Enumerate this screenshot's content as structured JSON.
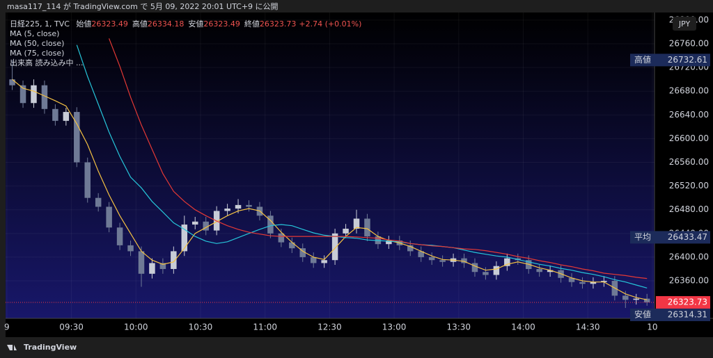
{
  "header": {
    "published": "masa117_114 が TradingView.com で 5月 09, 2022 20:01 UTC+9 に公開"
  },
  "footer": {
    "brand": "TradingView"
  },
  "chart_data": {
    "type": "candlestick",
    "symbol": "日経225, 1, TVC",
    "ohlc_legend": [
      {
        "label": "始値",
        "value": 26323.49
      },
      {
        "label": "高値",
        "value": 26334.18
      },
      {
        "label": "安値",
        "value": 26323.49
      },
      {
        "label": "終値",
        "value": 26323.73
      }
    ],
    "change": "+2.74 (+0.01%)",
    "volume_status": "出来高 読み込み中 ...",
    "currency": "JPY",
    "up_color": "#c8ccd6",
    "down_color": "#6f7a96",
    "x": [
      2.5,
      7.5,
      12.5,
      17.5,
      22.5,
      27.5,
      32.5,
      37.5,
      42.5,
      47.5,
      52.5,
      57.5,
      62.5,
      67.5,
      72.5,
      77.5,
      82.5,
      87.5,
      92.5,
      97.5,
      102.5,
      107.5,
      112.5,
      117.5,
      122.5,
      127.5,
      132.5,
      137.5,
      142.5,
      147.5,
      152.5,
      157.5,
      162.5,
      167.5,
      172.5,
      177.5,
      182.5,
      187.5,
      192.5,
      197.5,
      202.5,
      207.5,
      212.5,
      217.5,
      222.5,
      227.5,
      232.5,
      237.5,
      242.5,
      247.5,
      252.5,
      257.5,
      262.5,
      267.5,
      272.5,
      277.5,
      282.5,
      287.5,
      292.5,
      297.5
    ],
    "open": [
      26700,
      26690,
      26660,
      26690,
      26650,
      26630,
      26645,
      26560,
      26500,
      26485,
      26450,
      26420,
      26410,
      26372,
      26390,
      26380,
      26410,
      26455,
      26460,
      26445,
      26478,
      26482,
      26488,
      26485,
      26470,
      26440,
      26425,
      26415,
      26400,
      26390,
      26395,
      26440,
      26448,
      26465,
      26435,
      26422,
      26428,
      26420,
      26410,
      26400,
      26395,
      26392,
      26398,
      26390,
      26375,
      26370,
      26385,
      26398,
      26395,
      26380,
      26375,
      26378,
      26365,
      26358,
      26355,
      26358,
      26360,
      26335,
      26328,
      26330
    ],
    "high": [
      26733,
      26698,
      26700,
      26698,
      26658,
      26652,
      26653,
      26568,
      26508,
      26493,
      26458,
      26428,
      26418,
      26398,
      26398,
      26418,
      26470,
      26468,
      26468,
      26486,
      26490,
      26498,
      26496,
      26493,
      26478,
      26448,
      26433,
      26423,
      26408,
      26403,
      26448,
      26456,
      26480,
      26473,
      26443,
      26436,
      26436,
      26428,
      26418,
      26408,
      26403,
      26406,
      26406,
      26398,
      26383,
      26393,
      26406,
      26406,
      26403,
      26388,
      26386,
      26386,
      26373,
      26366,
      26366,
      26368,
      26368,
      26343,
      26338,
      26338
    ],
    "low": [
      26682,
      26652,
      26652,
      26642,
      26622,
      26622,
      26552,
      26492,
      26477,
      26442,
      26412,
      26402,
      26350,
      26364,
      26372,
      26372,
      26402,
      26447,
      26437,
      26437,
      26470,
      26474,
      26477,
      26462,
      26432,
      26417,
      26407,
      26392,
      26382,
      26382,
      26387,
      26432,
      26440,
      26427,
      26414,
      26414,
      26412,
      26402,
      26392,
      26387,
      26384,
      26384,
      26382,
      26367,
      26362,
      26362,
      26377,
      26387,
      26372,
      26367,
      26367,
      26357,
      26350,
      26347,
      26347,
      26350,
      26327,
      26314.31,
      26320,
      26318
    ],
    "close": [
      26690,
      26660,
      26690,
      26650,
      26630,
      26645,
      26560,
      26500,
      26485,
      26450,
      26420,
      26410,
      26372,
      26390,
      26380,
      26410,
      26455,
      26460,
      26445,
      26478,
      26482,
      26488,
      26485,
      26470,
      26440,
      26425,
      26415,
      26400,
      26390,
      26395,
      26440,
      26448,
      26465,
      26435,
      26422,
      26428,
      26420,
      26410,
      26400,
      26395,
      26392,
      26398,
      26390,
      26375,
      26370,
      26385,
      26398,
      26395,
      26380,
      26375,
      26378,
      26365,
      26358,
      26355,
      26358,
      26360,
      26335,
      26328,
      26330,
      26323.73
    ],
    "series": [
      {
        "name": "MA (5, close)",
        "color": "#f5c242",
        "values": [
          26700,
          26685,
          26680,
          26672,
          26664,
          26655,
          26625,
          26590,
          26545,
          26505,
          26470,
          26440,
          26410,
          26395,
          26388,
          26392,
          26415,
          26440,
          26450,
          26460,
          26470,
          26478,
          26482,
          26478,
          26462,
          26442,
          26425,
          26410,
          26400,
          26396,
          26415,
          26435,
          26450,
          26448,
          26435,
          26428,
          26424,
          26418,
          26410,
          26402,
          26396,
          26395,
          26393,
          26385,
          26378,
          26380,
          26388,
          26392,
          26388,
          26382,
          26378,
          26372,
          26365,
          26360,
          26358,
          26358,
          26348,
          26338,
          26332,
          26328
        ]
      },
      {
        "name": "MA (50, close)",
        "color": "#26c6da",
        "values": [
          null,
          null,
          null,
          null,
          null,
          null,
          26758,
          26705,
          26658,
          26611,
          26570,
          26535,
          26517,
          26494,
          26476,
          26458,
          26447,
          26435,
          26427,
          26423,
          26426,
          26433,
          26440,
          26447,
          26453,
          26455,
          26453,
          26447,
          26441,
          26437,
          26435,
          26433,
          26432,
          26429,
          26428,
          26427,
          26426,
          26423,
          26421,
          26420,
          26418,
          26416,
          26412,
          26408,
          26405,
          26402,
          26400,
          26396,
          26392,
          26388,
          26385,
          26381,
          26378,
          26374,
          26371,
          26367,
          26362,
          26358,
          26353,
          26348
        ]
      },
      {
        "name": "MA (75, close)",
        "color": "#e53935",
        "values": [
          null,
          null,
          null,
          null,
          null,
          null,
          null,
          null,
          null,
          26769,
          26722,
          26670,
          26623,
          26582,
          26541,
          26511,
          26494,
          26480,
          26470,
          26461,
          26453,
          26447,
          26442,
          26439,
          26436,
          26435,
          26435,
          26435,
          26435,
          26435,
          26435,
          26435,
          26434,
          26433,
          26432,
          26429,
          26427,
          26423,
          26421,
          26419,
          26418,
          26416,
          26414,
          26413,
          26411,
          26408,
          26405,
          26401,
          26398,
          26394,
          26391,
          26387,
          26384,
          26380,
          26377,
          26373,
          26371,
          26369,
          26366,
          26364
        ]
      }
    ],
    "price_labels": [
      {
        "label": "高値",
        "value": 26732.61
      },
      {
        "label": "平均",
        "value": 26433.47
      },
      {
        "label": "安値",
        "value": 26314.31
      }
    ],
    "last_price": 26323.73,
    "last_color": "#f23645",
    "xlim": [
      -0.6,
      301
    ],
    "xticks": [
      {
        "value": 0,
        "label": "9"
      },
      {
        "value": 30,
        "label": "09:30"
      },
      {
        "value": 60,
        "label": "10:00"
      },
      {
        "value": 90,
        "label": "10:30"
      },
      {
        "value": 120,
        "label": "11:00"
      },
      {
        "value": 150,
        "label": "12:30"
      },
      {
        "value": 180,
        "label": "13:00"
      },
      {
        "value": 210,
        "label": "13:30"
      },
      {
        "value": 240,
        "label": "14:00"
      },
      {
        "value": 270,
        "label": "14:30"
      },
      {
        "value": 300,
        "label": "10"
      }
    ],
    "ylim": [
      26296.7,
      26812.8
    ],
    "yticks": [
      {
        "value": 26360,
        "label": "26360.00"
      },
      {
        "value": 26400,
        "label": "26400.00"
      },
      {
        "value": 26440,
        "label": "26440.00"
      },
      {
        "value": 26480,
        "label": "26480.00"
      },
      {
        "value": 26520,
        "label": "26520.00"
      },
      {
        "value": 26560,
        "label": "26560.00"
      },
      {
        "value": 26600,
        "label": "26600.00"
      },
      {
        "value": 26640,
        "label": "26640.00"
      },
      {
        "value": 26680,
        "label": "26680.00"
      },
      {
        "value": 26720,
        "label": "26720.00"
      },
      {
        "value": 26760,
        "label": "26760.00"
      },
      {
        "value": 26800,
        "label": "26800.00"
      }
    ],
    "grid": true
  }
}
